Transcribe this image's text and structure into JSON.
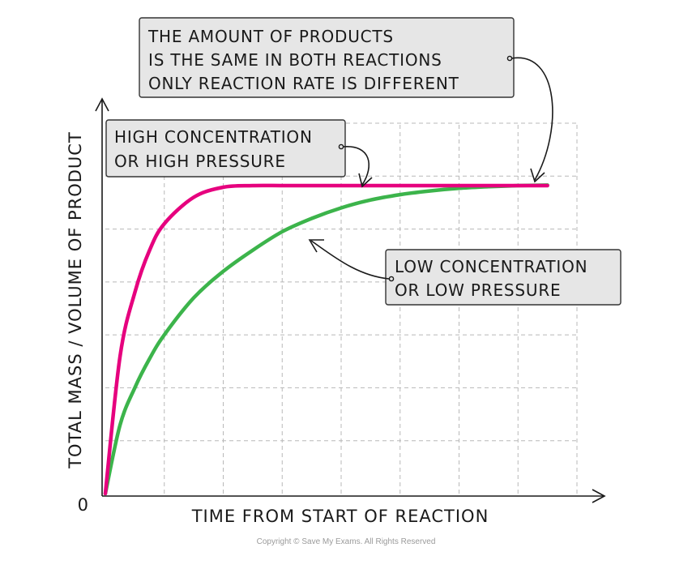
{
  "chart_data": {
    "type": "line",
    "xlabel": "TIME FROM START OF REACTION",
    "ylabel": "TOTAL MASS / VOLUME OF PRODUCT",
    "origin_label": "0",
    "x": [
      0,
      0.25,
      0.5,
      0.75,
      1,
      1.5,
      2,
      2.5,
      3,
      3.5,
      4,
      4.5,
      5,
      5.5,
      6,
      6.5,
      7,
      7.5
    ],
    "series": [
      {
        "name": "HIGH CONCENTRATION OR HIGH PRESSURE",
        "color": "#e6007e",
        "values": [
          0,
          2.6,
          3.8,
          4.6,
          5.1,
          5.6,
          5.79,
          5.82,
          5.82,
          5.82,
          5.82,
          5.82,
          5.82,
          5.82,
          5.82,
          5.82,
          5.82,
          5.82
        ]
      },
      {
        "name": "LOW CONCENTRATION OR LOW PRESSURE",
        "color": "#3cb44b",
        "values": [
          0,
          1.3,
          2.0,
          2.55,
          3.0,
          3.7,
          4.2,
          4.6,
          4.95,
          5.2,
          5.4,
          5.55,
          5.65,
          5.72,
          5.77,
          5.8,
          5.82,
          5.83
        ]
      }
    ],
    "xlim": [
      0,
      8
    ],
    "ylim": [
      0,
      7
    ],
    "grid": true,
    "annotations": [
      {
        "id": "amount",
        "lines": [
          "THE AMOUNT OF PRODUCTS",
          "IS THE SAME IN BOTH REACTIONS",
          "ONLY REACTION RATE IS DIFFERENT"
        ]
      },
      {
        "id": "high",
        "lines": [
          "HIGH CONCENTRATION",
          "OR HIGH PRESSURE"
        ]
      },
      {
        "id": "low",
        "lines": [
          "LOW CONCENTRATION",
          "OR LOW PRESSURE"
        ]
      }
    ],
    "copyright": "Copyright © Save My Exams. All Rights Reserved"
  },
  "colors": {
    "callout_fill": "#e6e6e6",
    "callout_stroke": "#333333",
    "grid": "#b8b8b8",
    "axis": "#1a1a1a"
  }
}
